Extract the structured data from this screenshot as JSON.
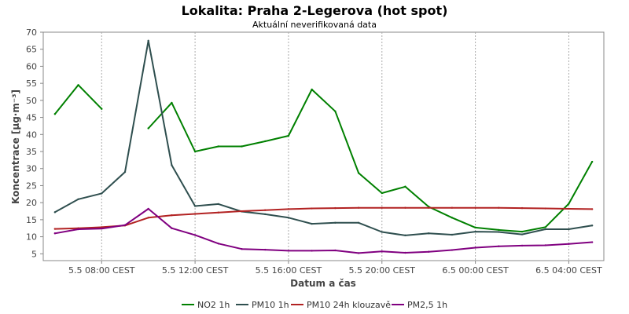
{
  "chart_data": {
    "type": "line",
    "title": "Lokalita: Praha 2-Legerova (hot spot)",
    "subtitle": "Aktuální neverifikovaná data",
    "xlabel": "Datum a čas",
    "ylabel": "Koncentrace [µg·m⁻³]",
    "ylim": [
      3,
      70
    ],
    "y_ticks": [
      5,
      10,
      15,
      20,
      25,
      30,
      35,
      40,
      45,
      50,
      55,
      60,
      65,
      70
    ],
    "xlim": [
      5.5,
      29.5
    ],
    "x_ticks": [
      {
        "hour": 8,
        "label": "5.5 08:00 CEST"
      },
      {
        "hour": 12,
        "label": "5.5 12:00 CEST"
      },
      {
        "hour": 16,
        "label": "5.5 16:00 CEST"
      },
      {
        "hour": 20,
        "label": "5.5 20:00 CEST"
      },
      {
        "hour": 24,
        "label": "6.5 00:00 CEST"
      },
      {
        "hour": 28,
        "label": "6.5 04:00 CEST"
      }
    ],
    "grid": true,
    "legend_position": "bottom",
    "x": [
      6,
      7,
      8,
      9,
      10,
      11,
      12,
      13,
      14,
      15,
      16,
      17,
      18,
      19,
      20,
      21,
      22,
      23,
      24,
      25,
      26,
      27,
      28,
      29
    ],
    "series": [
      {
        "name": "NO2 1h",
        "color": "#008000",
        "values": [
          46,
          54.5,
          47.5,
          null,
          41.8,
          49.3,
          35,
          36.5,
          36.5,
          38,
          39.6,
          53.2,
          46.8,
          28.7,
          22.8,
          24.7,
          18.8,
          15.6,
          12.7,
          12,
          11.5,
          12.8,
          19.7,
          32
        ]
      },
      {
        "name": "PM10 1h",
        "color": "#2f4f4f",
        "values": [
          17.2,
          21,
          22.7,
          29,
          67.5,
          31,
          19,
          19.6,
          17.4,
          16.6,
          15.6,
          13.8,
          14.1,
          14.1,
          11.4,
          10.4,
          11,
          10.6,
          11.5,
          11.4,
          10.7,
          12.2,
          12.2,
          13.3
        ]
      },
      {
        "name": "PM10 24h klouzavě",
        "color": "#b22222",
        "values": [
          12.3,
          12.5,
          12.8,
          13.3,
          15.6,
          16.3,
          16.7,
          17.1,
          17.5,
          17.8,
          18.1,
          18.3,
          18.4,
          18.5,
          18.5,
          18.5,
          18.5,
          18.5,
          18.5,
          18.5,
          18.4,
          18.3,
          18.2,
          18.1
        ]
      },
      {
        "name": "PM2,5 1h",
        "color": "#800080",
        "values": [
          11,
          12.2,
          12.4,
          13.4,
          18.2,
          12.5,
          10.5,
          8,
          6.4,
          6.2,
          5.9,
          5.9,
          6,
          5.2,
          5.7,
          5.3,
          5.6,
          6.1,
          6.8,
          7.2,
          7.4,
          7.5,
          7.9,
          8.4
        ]
      }
    ]
  }
}
